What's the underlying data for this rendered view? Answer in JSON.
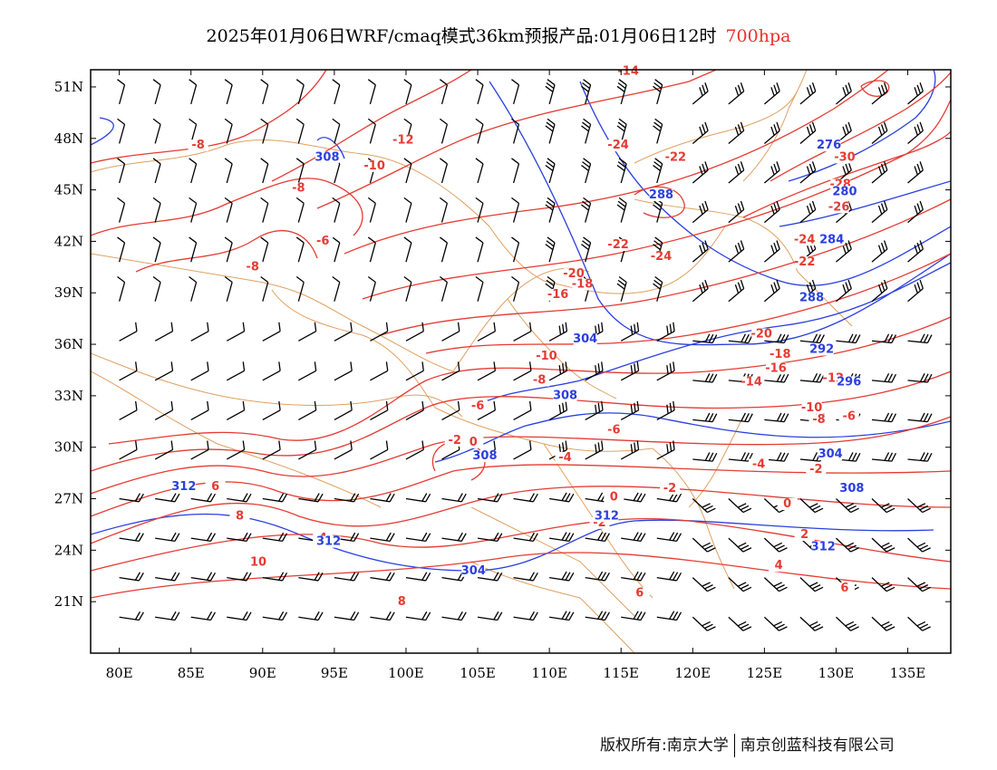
{
  "header": {
    "title": "2025年01月06日WRF/cmaq模式36km预报产品:01月06日12时",
    "level": "700hpa"
  },
  "footer": {
    "copyright": "版权所有:南京大学",
    "company": "南京创蓝科技有限公司"
  },
  "map": {
    "lon_range": [
      78,
      138
    ],
    "lat_range": [
      18,
      52
    ],
    "lon_ticks": [
      "80E",
      "85E",
      "90E",
      "95E",
      "100E",
      "105E",
      "110E",
      "115E",
      "120E",
      "125E",
      "130E",
      "135E"
    ],
    "lat_ticks": [
      "51N",
      "48N",
      "45N",
      "42N",
      "39N",
      "36N",
      "33N",
      "30N",
      "27N",
      "24N",
      "21N"
    ],
    "colors": {
      "temperature": "#e53b33",
      "height": "#2a3fe0",
      "boundary": "#e0a060",
      "wind": "#000000",
      "level_text": "#e8322b"
    },
    "temperature_labels": [
      {
        "text": "-14",
        "lon": 115.5,
        "lat": 51.7
      },
      {
        "text": "-8",
        "lon": 85.5,
        "lat": 47.4
      },
      {
        "text": "-12",
        "lon": 99.8,
        "lat": 47.7
      },
      {
        "text": "-10",
        "lon": 97.8,
        "lat": 46.2
      },
      {
        "text": "-8",
        "lon": 92.5,
        "lat": 44.9
      },
      {
        "text": "-6",
        "lon": 94.2,
        "lat": 41.8
      },
      {
        "text": "-8",
        "lon": 89.3,
        "lat": 40.3
      },
      {
        "text": "-24",
        "lon": 114.8,
        "lat": 47.4
      },
      {
        "text": "-22",
        "lon": 118.8,
        "lat": 46.7
      },
      {
        "text": "-30",
        "lon": 130.6,
        "lat": 46.7
      },
      {
        "text": "-28",
        "lon": 130.3,
        "lat": 45.1
      },
      {
        "text": "-26",
        "lon": 130.2,
        "lat": 43.8
      },
      {
        "text": "-24",
        "lon": 127.8,
        "lat": 41.9
      },
      {
        "text": "-22",
        "lon": 114.8,
        "lat": 41.6
      },
      {
        "text": "-24",
        "lon": 117.8,
        "lat": 40.9
      },
      {
        "text": "-22",
        "lon": 127.8,
        "lat": 40.6
      },
      {
        "text": "-20",
        "lon": 111.7,
        "lat": 39.9
      },
      {
        "text": "-18",
        "lon": 112.3,
        "lat": 39.3
      },
      {
        "text": "-16",
        "lon": 110.6,
        "lat": 38.7
      },
      {
        "text": "-20",
        "lon": 124.8,
        "lat": 36.4
      },
      {
        "text": "-18",
        "lon": 126.1,
        "lat": 35.2
      },
      {
        "text": "-16",
        "lon": 125.8,
        "lat": 34.4
      },
      {
        "text": "-14",
        "lon": 124.1,
        "lat": 33.6
      },
      {
        "text": "-12",
        "lon": 129.8,
        "lat": 33.8
      },
      {
        "text": "-10",
        "lon": 109.8,
        "lat": 35.1
      },
      {
        "text": "-8",
        "lon": 109.3,
        "lat": 33.7
      },
      {
        "text": "-10",
        "lon": 128.3,
        "lat": 32.1
      },
      {
        "text": "-8",
        "lon": 128.8,
        "lat": 31.4
      },
      {
        "text": "-6",
        "lon": 130.9,
        "lat": 31.6
      },
      {
        "text": "-6",
        "lon": 114.5,
        "lat": 30.8
      },
      {
        "text": "-6",
        "lon": 105.0,
        "lat": 32.2
      },
      {
        "text": "-4",
        "lon": 111.1,
        "lat": 29.2
      },
      {
        "text": "-4",
        "lon": 124.6,
        "lat": 28.8
      },
      {
        "text": "-2",
        "lon": 128.6,
        "lat": 28.5
      },
      {
        "text": "-2",
        "lon": 118.4,
        "lat": 27.4
      },
      {
        "text": "-2",
        "lon": 103.4,
        "lat": 30.2
      },
      {
        "text": "0",
        "lon": 104.7,
        "lat": 30.1
      },
      {
        "text": "0",
        "lon": 114.5,
        "lat": 26.9
      },
      {
        "text": "0",
        "lon": 126.6,
        "lat": 26.5
      },
      {
        "text": "-2",
        "lon": 113.5,
        "lat": 25.4
      },
      {
        "text": "2",
        "lon": 127.8,
        "lat": 24.7
      },
      {
        "text": "4",
        "lon": 126.0,
        "lat": 22.9
      },
      {
        "text": "6",
        "lon": 130.6,
        "lat": 21.6
      },
      {
        "text": "6",
        "lon": 86.7,
        "lat": 27.5
      },
      {
        "text": "8",
        "lon": 88.4,
        "lat": 25.8
      },
      {
        "text": "4",
        "lon": 94.2,
        "lat": 24.5
      },
      {
        "text": "10",
        "lon": 89.7,
        "lat": 23.1
      },
      {
        "text": "8",
        "lon": 99.7,
        "lat": 20.8
      },
      {
        "text": "6",
        "lon": 116.3,
        "lat": 21.3
      }
    ],
    "height_labels": [
      {
        "text": "308",
        "lon": 94.5,
        "lat": 46.7
      },
      {
        "text": "276",
        "lon": 129.5,
        "lat": 47.4
      },
      {
        "text": "280",
        "lon": 130.6,
        "lat": 44.7
      },
      {
        "text": "288",
        "lon": 117.8,
        "lat": 44.5
      },
      {
        "text": "284",
        "lon": 129.7,
        "lat": 41.9
      },
      {
        "text": "288",
        "lon": 128.3,
        "lat": 38.5
      },
      {
        "text": "304",
        "lon": 112.5,
        "lat": 36.1
      },
      {
        "text": "292",
        "lon": 129.0,
        "lat": 35.5
      },
      {
        "text": "296",
        "lon": 130.9,
        "lat": 33.6
      },
      {
        "text": "308",
        "lon": 111.1,
        "lat": 32.8
      },
      {
        "text": "304",
        "lon": 129.6,
        "lat": 29.4
      },
      {
        "text": "308",
        "lon": 131.1,
        "lat": 27.4
      },
      {
        "text": "308",
        "lon": 105.5,
        "lat": 29.3
      },
      {
        "text": "312",
        "lon": 84.5,
        "lat": 27.5
      },
      {
        "text": "312",
        "lon": 114.0,
        "lat": 25.8
      },
      {
        "text": "312",
        "lon": 129.1,
        "lat": 24.0
      },
      {
        "text": "312",
        "lon": 94.6,
        "lat": 24.3
      },
      {
        "text": "304",
        "lon": 104.7,
        "lat": 22.6
      }
    ]
  }
}
